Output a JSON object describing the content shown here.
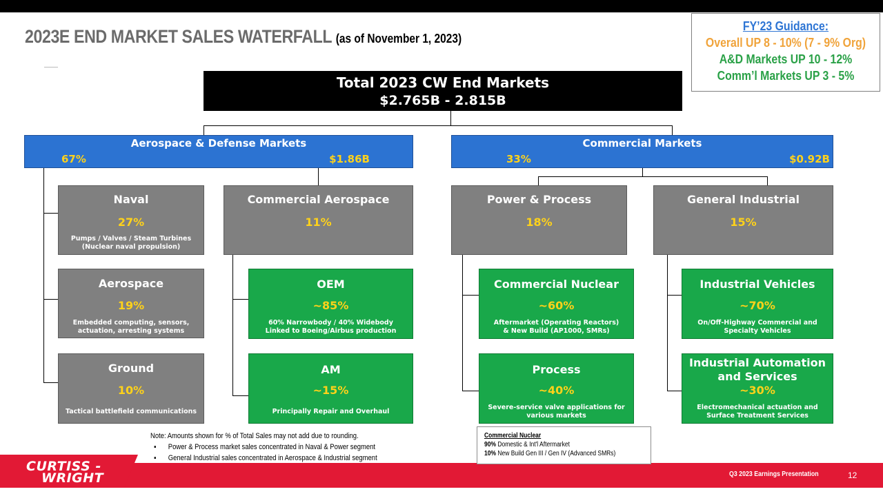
{
  "title": {
    "main": "2023E END MARKET SALES WATERFALL",
    "sub": "(as of November 1, 2023)"
  },
  "guidance": {
    "heading": "FY’23 Guidance:",
    "overall": "Overall UP 8 - 10% (7 - 9% Org)",
    "ad": "A&D Markets UP 10 - 12%",
    "comm": "Comm’l Markets UP 3 - 5%"
  },
  "total": {
    "label": "Total 2023 CW End Markets",
    "value": "$2.765B - 2.815B"
  },
  "markets": {
    "ad": {
      "name": "Aerospace & Defense Markets",
      "pct": "67%",
      "value": "$1.86B"
    },
    "commercial": {
      "name": "Commercial Markets",
      "pct": "33%",
      "value": "$0.92B"
    }
  },
  "segments": {
    "naval": {
      "name": "Naval",
      "pct": "27%",
      "desc1": "Pumps / Valves / Steam Turbines",
      "desc2": "(Nuclear naval propulsion)"
    },
    "aerospace": {
      "name": "Aerospace",
      "pct": "19%",
      "desc1": "Embedded computing, sensors,",
      "desc2": "actuation, arresting systems"
    },
    "ground": {
      "name": "Ground",
      "pct": "10%",
      "desc1": "Tactical battlefield communications"
    },
    "comm_aero": {
      "name": "Commercial Aerospace",
      "pct": "11%"
    },
    "oem": {
      "name": "OEM",
      "pct": "~85%",
      "desc1": "60% Narrowbody / 40% Widebody",
      "desc2": "Linked to Boeing/Airbus production"
    },
    "am": {
      "name": "AM",
      "pct": "~15%",
      "desc1": "Principally Repair and Overhaul"
    },
    "power_process": {
      "name": "Power & Process",
      "pct": "18%"
    },
    "comm_nuclear": {
      "name": "Commercial Nuclear",
      "pct": "~60%",
      "desc1": "Aftermarket (Operating Reactors)",
      "desc2": "& New Build (AP1000, SMRs)"
    },
    "process": {
      "name": "Process",
      "pct": "~40%",
      "desc1": "Severe-service valve applications for",
      "desc2": "various markets"
    },
    "general_industrial": {
      "name": "General Industrial",
      "pct": "15%"
    },
    "industrial_vehicles": {
      "name": "Industrial Vehicles",
      "pct": "~70%",
      "desc1": "On/Off-Highway Commercial and",
      "desc2": "Specialty Vehicles"
    },
    "industrial_automation": {
      "name1": "Industrial Automation",
      "name2": "and Services",
      "pct": "~30%",
      "desc1": "Electromechanical actuation and",
      "desc2": "Surface Treatment Services"
    }
  },
  "note": {
    "line1": "Note:  Amounts shown for % of Total Sales may not add due to rounding.",
    "bullet": "▪",
    "line2": "Power & Process market sales concentrated  in Naval & Power segment",
    "line3": "General Industrial  sales concentrated  in Aerospace & Industrial  segment"
  },
  "nuclear_box": {
    "title": "Commercial Nuclear",
    "l1_pct": "90%",
    "l1_text": " Domestic  & Int'l  Aftermarket",
    "l2_pct": "10%",
    "l2_text": " New Build Gen III / Gen IV (Advanced SMRs)"
  },
  "footer": {
    "logo_line1": "CURTISS -",
    "logo_line2": "WRIGHT",
    "presentation": "Q3 2023 Earnings Presentation",
    "page": "12"
  },
  "colors": {
    "blue": "#2c73d2",
    "green": "#19a84a",
    "gray": "#808080",
    "yellow": "#ffd21a",
    "red": "#e21935"
  }
}
